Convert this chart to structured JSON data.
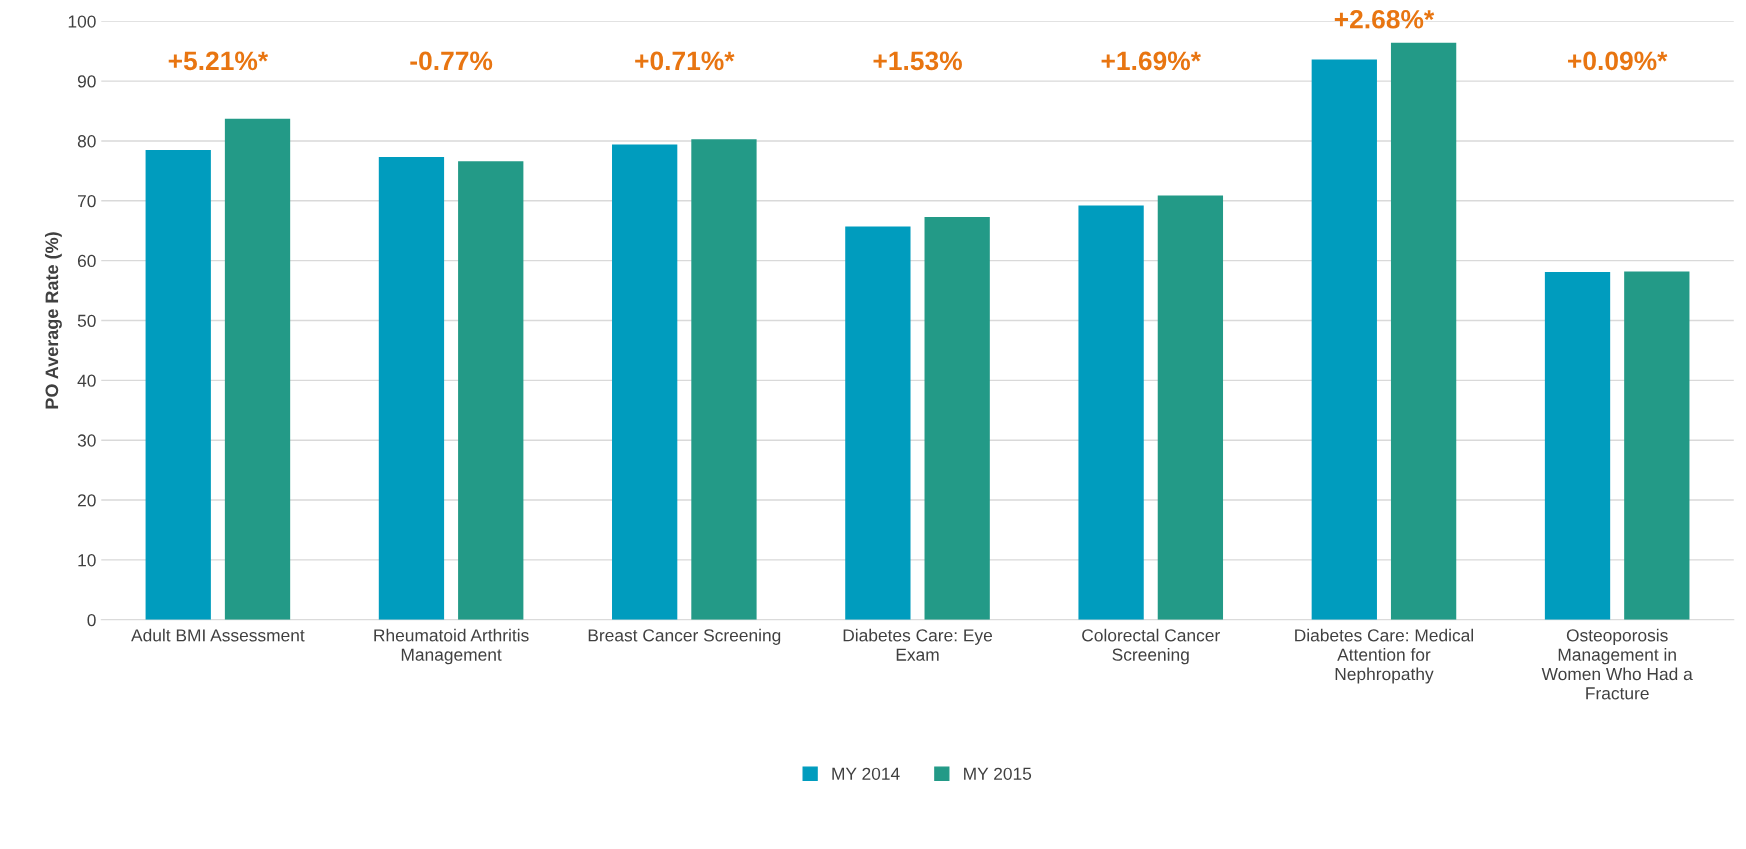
{
  "chart_data": {
    "type": "bar",
    "ylabel": "PO Average Rate (%)",
    "categories": [
      "Adult BMI Assessment",
      "Rheumatoid Arthritis\nManagement",
      "Breast Cancer Screening",
      "Diabetes Care: Eye\nExam",
      "Colorectal Cancer\nScreening",
      "Diabetes Care: Medical\nAttention for\nNephropathy",
      "Osteoporosis\nManagement in\nWomen Who Had a\nFracture"
    ],
    "series": [
      {
        "name": "MY 2014",
        "color": "#009cbe",
        "values": [
          78.5,
          77.3,
          79.4,
          65.7,
          69.2,
          93.6,
          58.1
        ]
      },
      {
        "name": "MY 2015",
        "color": "#239a87",
        "values": [
          83.7,
          76.6,
          80.3,
          67.3,
          70.9,
          96.4,
          58.2
        ]
      }
    ],
    "annotations": [
      "+5.21%*",
      "-0.77%",
      "+0.71%*",
      "+1.53%",
      "+1.69%*",
      "+2.68%*",
      "+0.09%*"
    ],
    "ylim": [
      0,
      100
    ],
    "yticks": [
      0,
      10,
      20,
      30,
      40,
      50,
      60,
      70,
      80,
      90,
      100
    ],
    "grid": "y",
    "legend": "bottom"
  }
}
